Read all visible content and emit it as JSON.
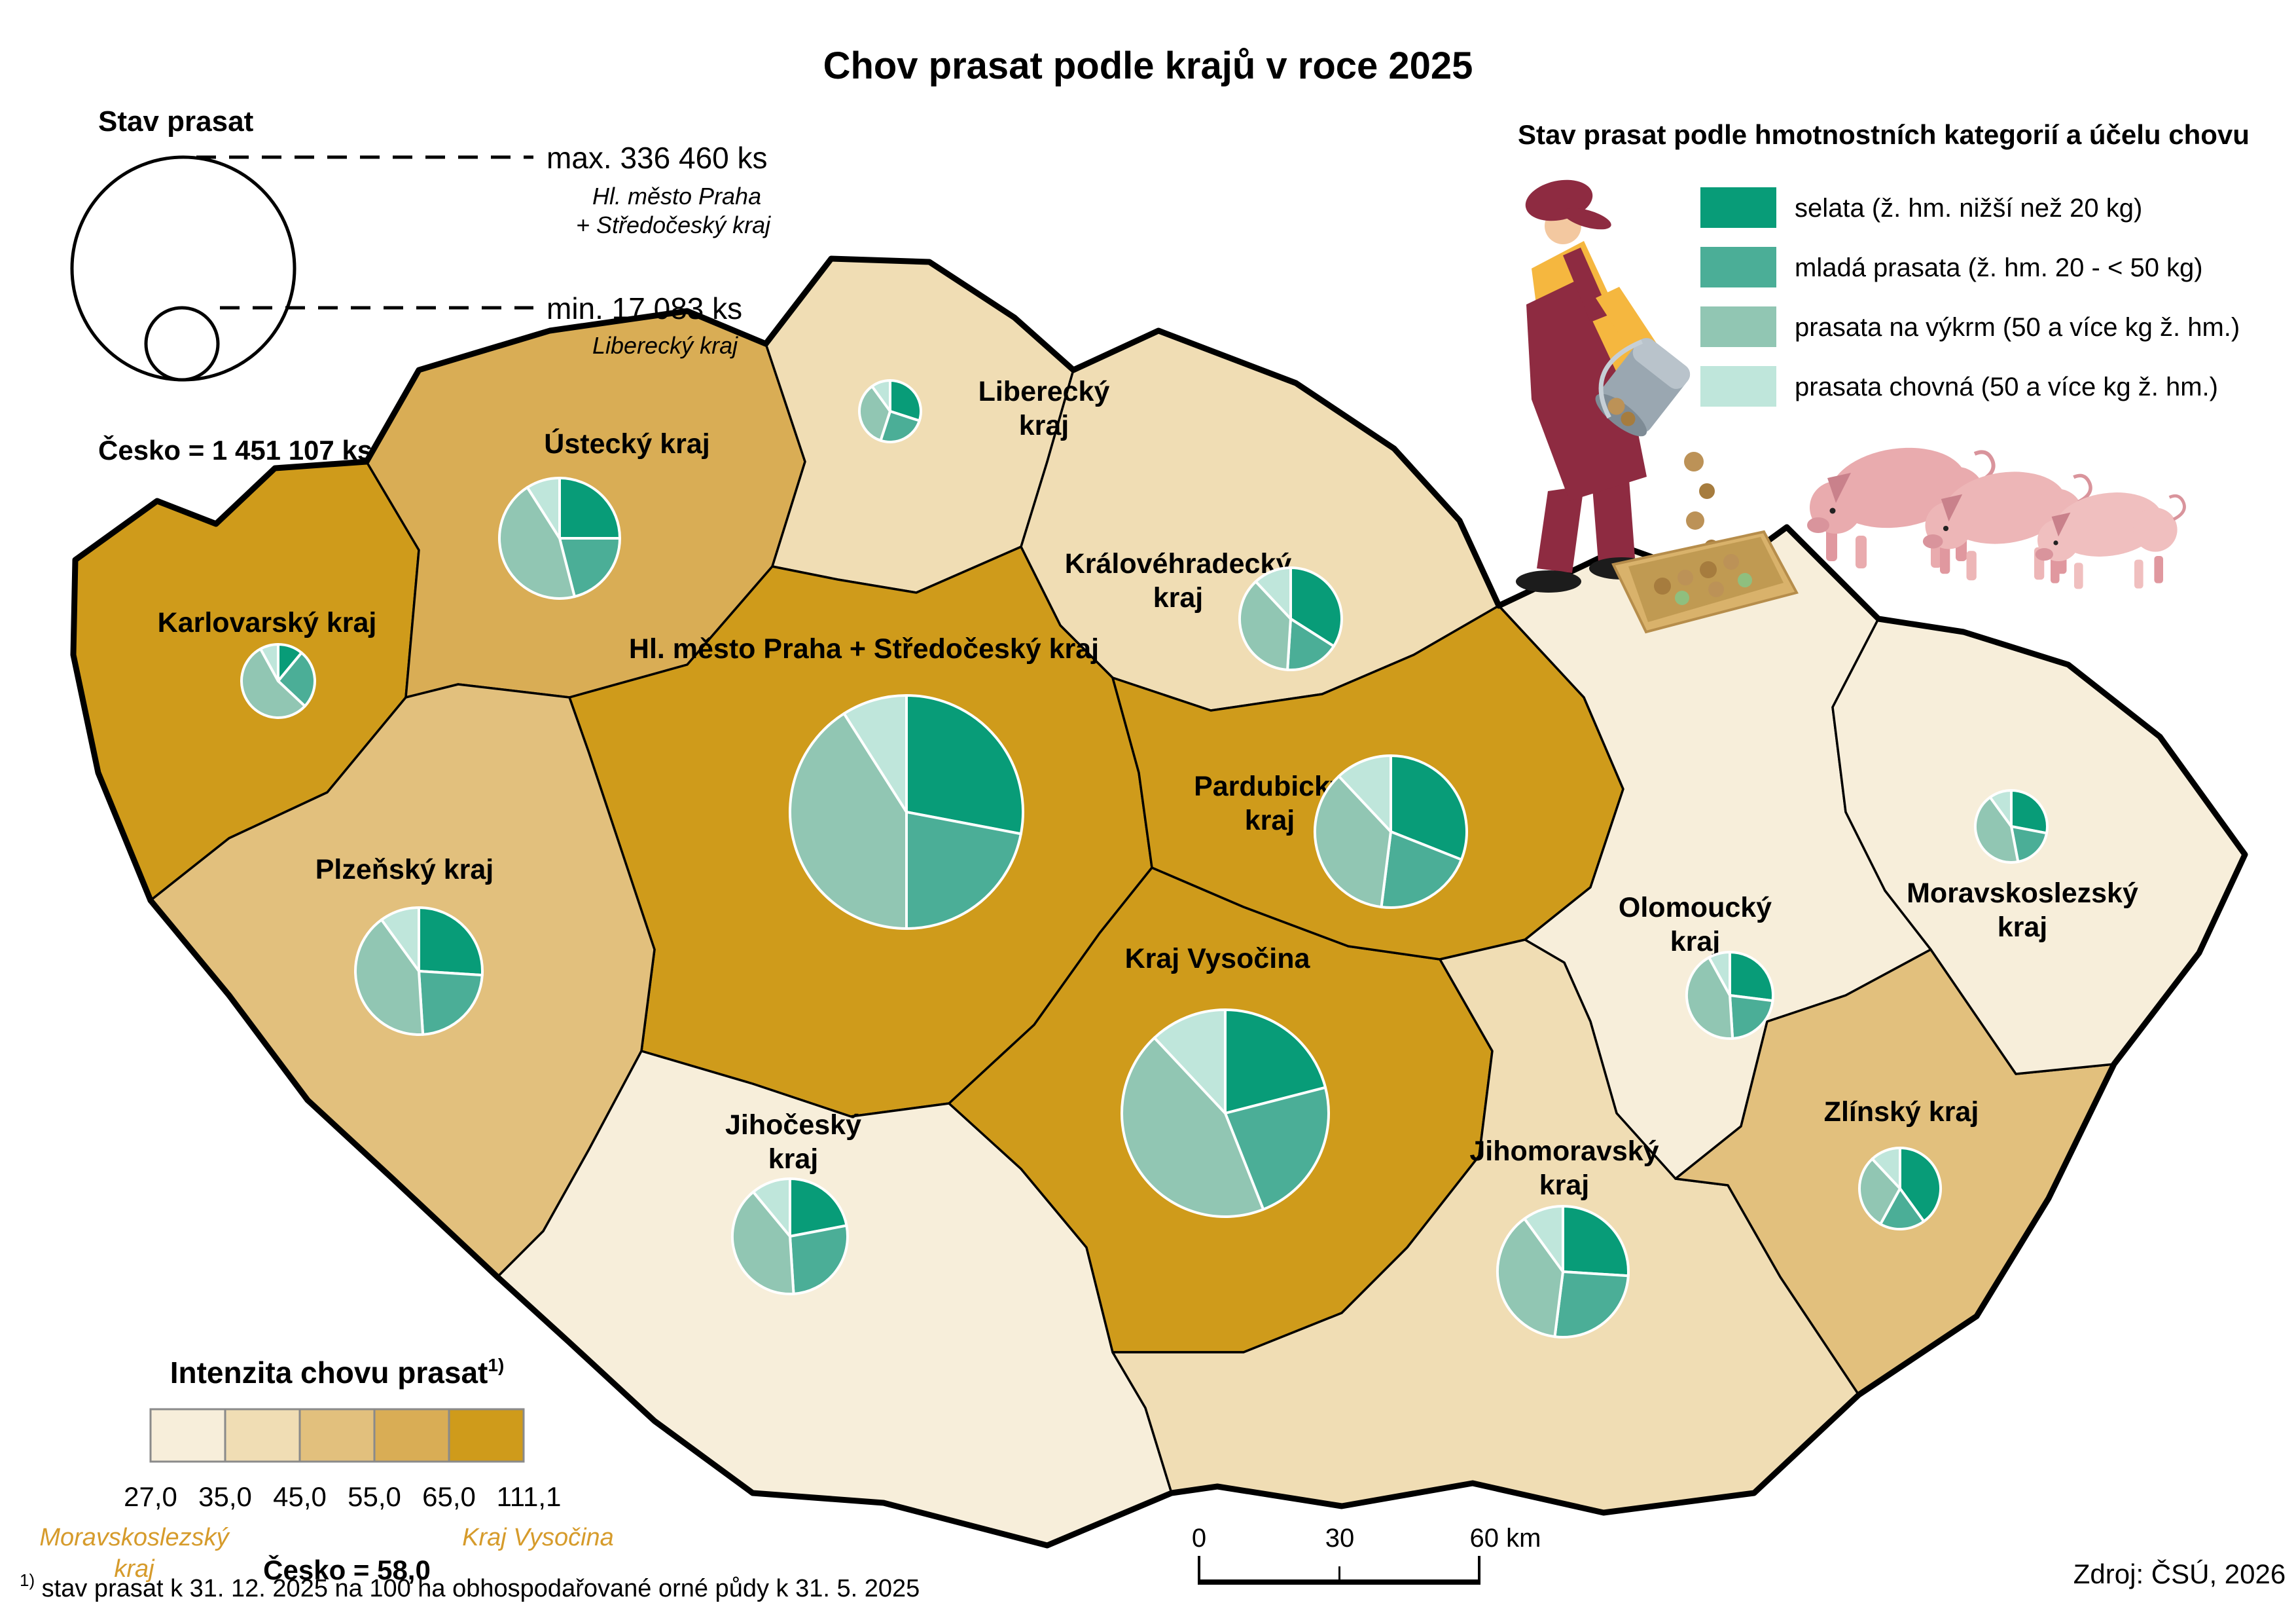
{
  "title": "Chov prasat podle krajů v roce 2025",
  "size_legend": {
    "title": "Stav prasat",
    "max_label": "max. 336 460 ks",
    "max_region_lines": [
      "Hl. město Praha",
      "+ Středočeský kraj"
    ],
    "min_label": "min. 17 083 ks",
    "min_region": "Liberecký kraj",
    "total_label": "Česko = 1 451 107 ks"
  },
  "category_legend": {
    "title": "Stav prasat podle hmotnostních kategorií a účelu chovu",
    "illustration": "farmer-feeding-pigs",
    "items": [
      {
        "label": "selata (ž. hm. nižší než 20 kg)",
        "color": "#089C78"
      },
      {
        "label": "mladá prasata (ž. hm. 20 - < 50 kg)",
        "color": "#4BAE97"
      },
      {
        "label": "prasata na výkrm (50 a více kg ž. hm.)",
        "color": "#91C6B3"
      },
      {
        "label": "prasata chovná (50 a více kg ž. hm.)",
        "color": "#BFE6DB"
      }
    ]
  },
  "intensity_legend": {
    "title": "Intenzita chovu prasat",
    "title_sup": "1)",
    "breaks": [
      "27,0",
      "35,0",
      "45,0",
      "55,0",
      "65,0",
      "111,1"
    ],
    "colors": [
      "#F7EEDA",
      "#F0DDB4",
      "#E2C07D",
      "#D9AD55",
      "#CF9B1B"
    ],
    "min_region_lines": [
      "Moravskoslezský",
      "kraj"
    ],
    "max_region": "Kraj Vysočina",
    "avg_label": "Česko = 58,0",
    "label_color": "#D69B2B"
  },
  "scale_bar": {
    "labels": [
      "0",
      "30",
      "60 km"
    ]
  },
  "footnote_sup": "1)",
  "footnote": " stav prasat k 31. 12. 2025 na 100 ha obhospodařované orné půdy k 31. 5. 2025",
  "source": "Zdroj: ČSÚ, 2026",
  "map": {
    "border_color": "#000000",
    "pie_stroke": "#FFFFFF",
    "regions": [
      {
        "id": "karlovarsky",
        "name": "Karlovarský kraj",
        "intensity_class": 4,
        "pie_shares": [
          11,
          26,
          55,
          8
        ]
      },
      {
        "id": "ustecky",
        "name": "Ústecký kraj",
        "intensity_class": 3,
        "pie_shares": [
          25,
          21,
          45,
          9
        ]
      },
      {
        "id": "liberecky",
        "name": "Liberecký kraj",
        "intensity_class": 1,
        "pie_shares": [
          30,
          25,
          35,
          10
        ]
      },
      {
        "id": "kralovehradecky",
        "name": "Královéhradecký kraj",
        "intensity_class": 1,
        "pie_shares": [
          34,
          17,
          37,
          12
        ]
      },
      {
        "id": "praha_stredocesky",
        "name": "Hl. město Praha + Středočeský kraj",
        "intensity_class": 4,
        "pie_shares": [
          28,
          22,
          41,
          9
        ]
      },
      {
        "id": "plzensky",
        "name": "Plzeňský kraj",
        "intensity_class": 2,
        "pie_shares": [
          26,
          23,
          41,
          10
        ]
      },
      {
        "id": "jihocesky",
        "name": "Jihočeský kraj",
        "intensity_class": 0,
        "pie_shares": [
          22,
          27,
          40,
          11
        ]
      },
      {
        "id": "vysocina",
        "name": "Kraj Vysočina",
        "intensity_class": 4,
        "pie_shares": [
          21,
          23,
          44,
          12
        ]
      },
      {
        "id": "pardubicky",
        "name": "Pardubický kraj",
        "intensity_class": 4,
        "pie_shares": [
          31,
          21,
          36,
          12
        ]
      },
      {
        "id": "olomoucky",
        "name": "Olomoucký kraj",
        "intensity_class": 0,
        "pie_shares": [
          27,
          22,
          43,
          8
        ]
      },
      {
        "id": "jihomoravsky",
        "name": "Jihomoravský kraj",
        "intensity_class": 1,
        "pie_shares": [
          26,
          26,
          38,
          10
        ]
      },
      {
        "id": "zlinsky",
        "name": "Zlínský kraj",
        "intensity_class": 2,
        "pie_shares": [
          40,
          18,
          30,
          12
        ]
      },
      {
        "id": "moravskoslezsky",
        "name": "Moravskoslezský kraj",
        "intensity_class": 0,
        "pie_shares": [
          28,
          19,
          43,
          10
        ]
      }
    ]
  }
}
